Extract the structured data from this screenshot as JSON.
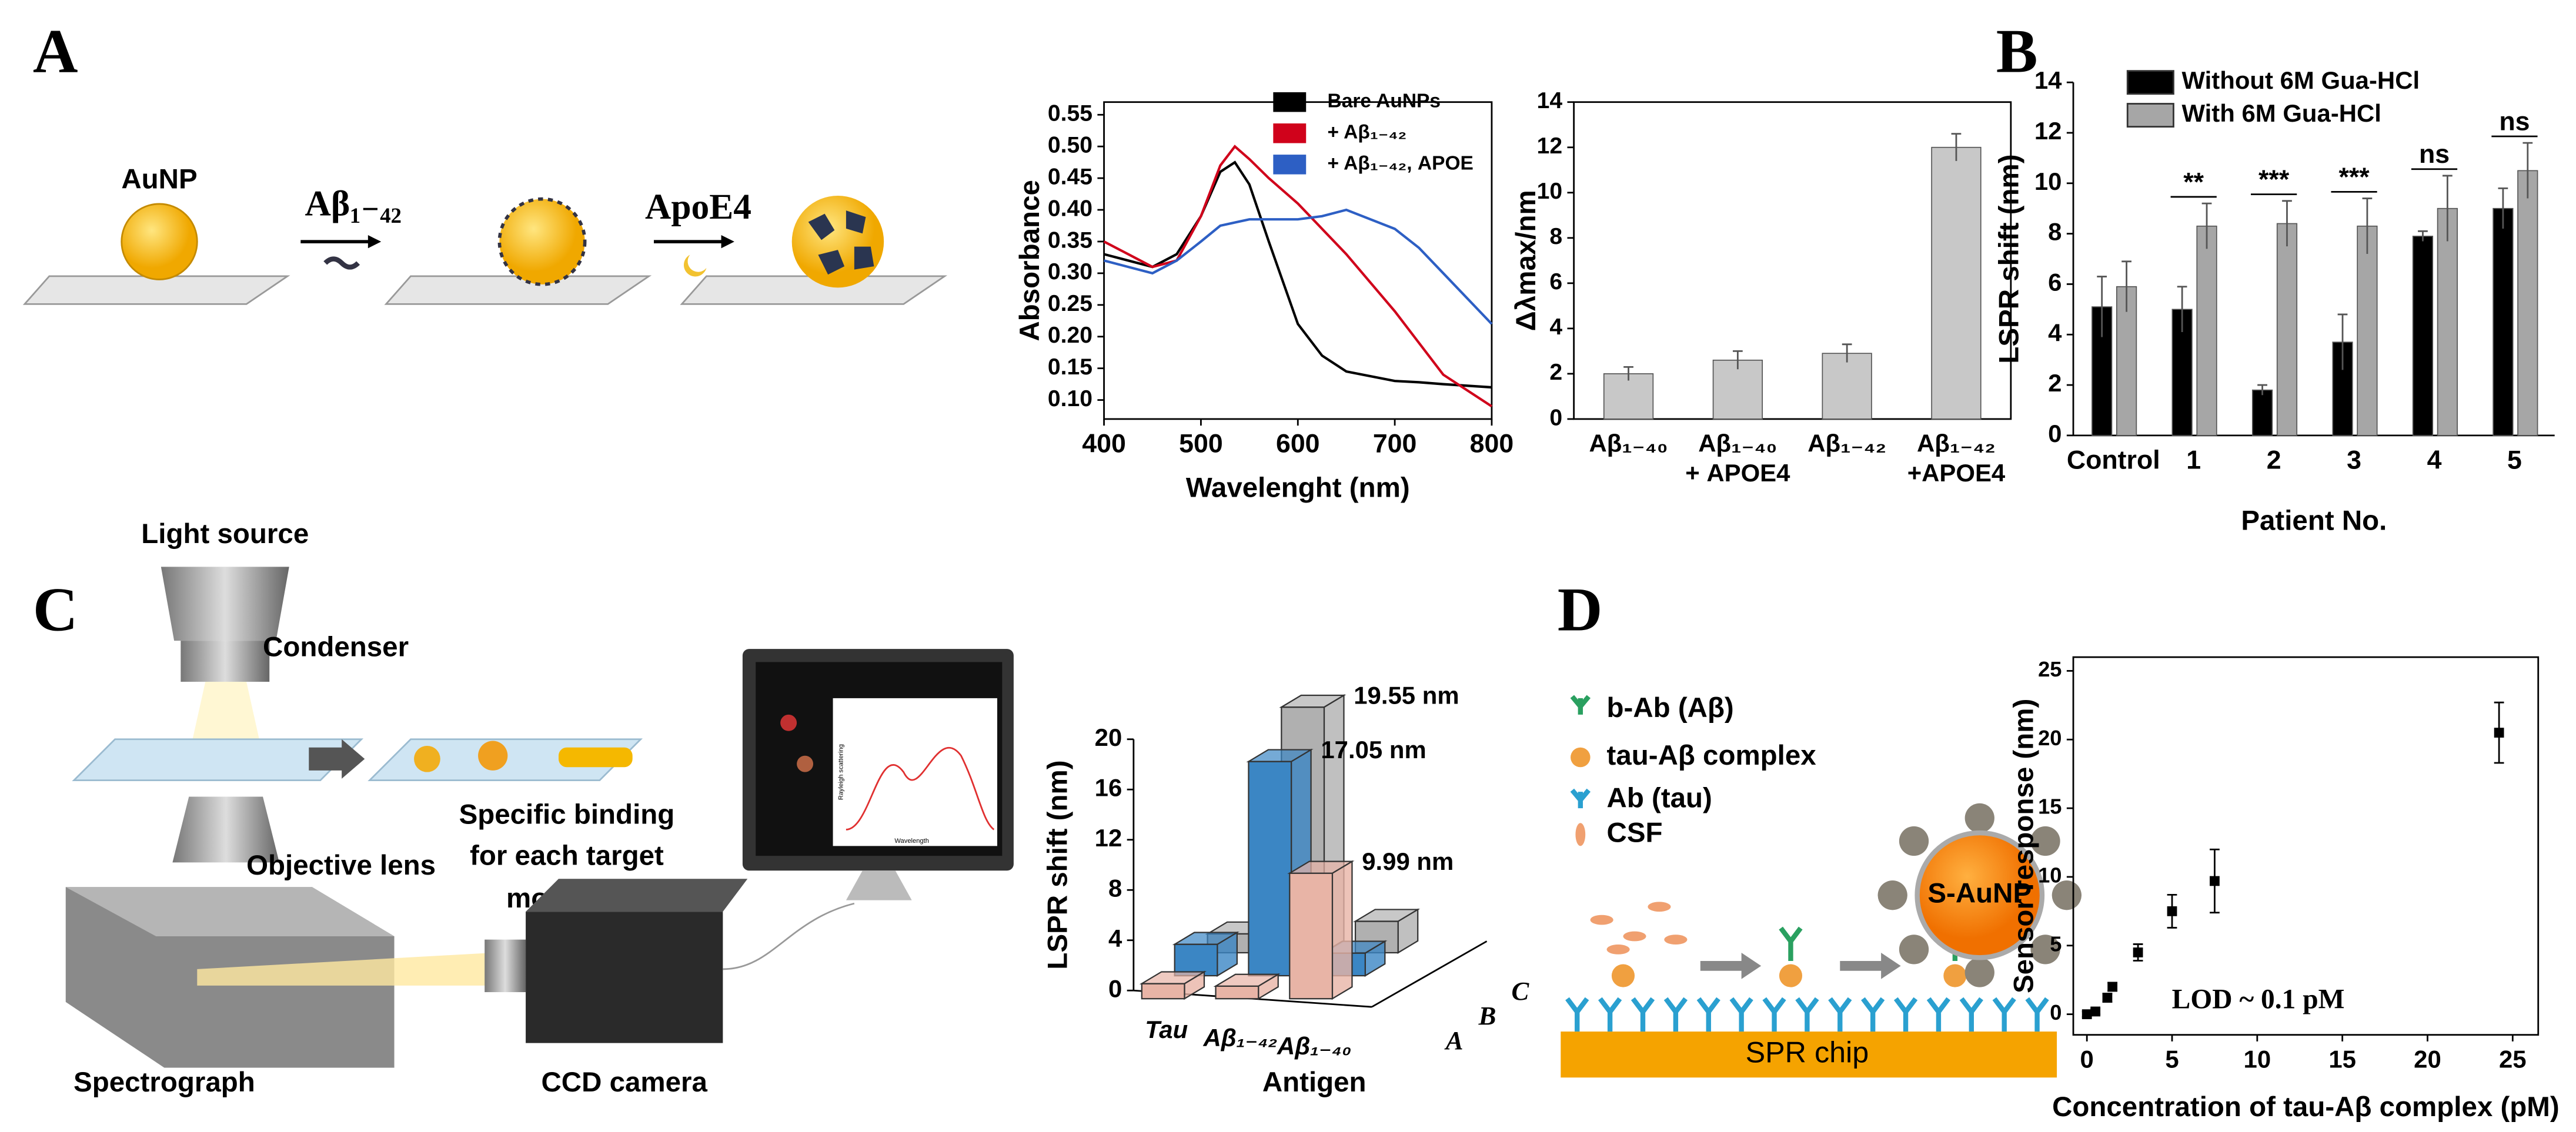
{
  "panels": [
    "A",
    "B",
    "C",
    "D"
  ],
  "diagram_a": {
    "nanoparticle": "AuNP",
    "step1": "Aβ₁₋₄₂",
    "step2": "ApoE4"
  },
  "diagram_c": {
    "light": "Light source",
    "condenser": "Condenser",
    "objective": "Objective lens",
    "binding": [
      "Specific binding",
      "for each target",
      "molecule"
    ],
    "spectrograph": "Spectrograph",
    "camera": "CCD camera",
    "screen_y": "Rayleigh scattering",
    "screen_x": "Wavelength"
  },
  "diagram_d": {
    "legend": [
      "b-Ab (Aβ)",
      "tau-Aβ complex",
      "Ab (tau)",
      "CSF"
    ],
    "particle": "S-AuNP",
    "chip": "SPR chip"
  },
  "chart_data": [
    {
      "type": "line",
      "xlabel": "Wavelenght (nm)",
      "ylabel": "Absorbance",
      "x": [
        400,
        425,
        450,
        475,
        500,
        520,
        535,
        550,
        570,
        600,
        625,
        650,
        700,
        725,
        750,
        800
      ],
      "series": [
        {
          "name": "Bare AuNPs",
          "color": "#000000",
          "values": [
            0.33,
            0.32,
            0.31,
            0.33,
            0.39,
            0.46,
            0.475,
            0.44,
            0.35,
            0.22,
            0.17,
            0.145,
            0.13,
            0.128,
            0.125,
            0.12
          ]
        },
        {
          "name": "+ Aβ₁₋₄₂",
          "color": "#d0021b",
          "values": [
            0.35,
            0.33,
            0.31,
            0.32,
            0.39,
            0.47,
            0.5,
            0.48,
            0.45,
            0.41,
            0.37,
            0.33,
            0.24,
            0.19,
            0.14,
            0.09
          ]
        },
        {
          "name": "+ Aβ₁₋₄₂, APOE",
          "color": "#2d5fc4",
          "values": [
            0.32,
            0.31,
            0.3,
            0.32,
            0.35,
            0.375,
            0.38,
            0.385,
            0.385,
            0.385,
            0.39,
            0.4,
            0.37,
            0.34,
            0.3,
            0.22
          ]
        }
      ],
      "xlim": [
        400,
        800
      ],
      "xticks": [
        400,
        500,
        600,
        700,
        800
      ],
      "ylim": [
        0.07,
        0.57
      ],
      "yticks": [
        {
          "value": 0.1,
          "label": "0.10"
        },
        0.15,
        {
          "value": 0.2,
          "label": "0.20"
        },
        0.25,
        {
          "value": 0.3,
          "label": "0.30"
        },
        0.35,
        {
          "value": 0.4,
          "label": "0.40"
        },
        0.45,
        {
          "value": 0.5,
          "label": "0.50"
        },
        0.55
      ]
    },
    {
      "type": "bar",
      "ylabel": "Δλmax/nm",
      "categories": [
        "Aβ₁₋₄₀",
        "Aβ₁₋₄₀\n+ APOE4",
        "Aβ₁₋₄₂",
        "Aβ₁₋₄₂\n+APOE4"
      ],
      "values": [
        2.0,
        2.6,
        2.9,
        12.0
      ],
      "errors": [
        0.3,
        0.4,
        0.4,
        0.6
      ],
      "color": "#c8c8c8",
      "ylim": [
        0,
        14
      ],
      "yticks": [
        0,
        2,
        4,
        6,
        8,
        10,
        12,
        14
      ]
    },
    {
      "type": "bar",
      "ylabel": "LSPR shift (nm)",
      "xlabel": "Patient No.",
      "categories": [
        "Control",
        "1",
        "2",
        "3",
        "4",
        "5"
      ],
      "series": [
        {
          "name": "Without 6M Gua-HCl",
          "color": "#000000",
          "values": [
            5.1,
            5.0,
            1.8,
            3.7,
            7.9,
            9.0
          ],
          "errors": [
            1.2,
            0.9,
            0.2,
            1.1,
            0.2,
            0.8
          ]
        },
        {
          "name": "With 6M Gua-HCl",
          "color": "#a6a6a6",
          "values": [
            5.9,
            8.3,
            8.4,
            8.3,
            9.0,
            10.5
          ],
          "errors": [
            1.0,
            0.9,
            0.9,
            1.1,
            1.3,
            1.1
          ]
        }
      ],
      "annotations": [
        null,
        "**",
        "***",
        "***",
        "ns",
        "ns"
      ],
      "ylim": [
        0,
        14
      ],
      "yticks": [
        0,
        2,
        4,
        6,
        8,
        10,
        12,
        14
      ]
    },
    {
      "type": "bar3d",
      "ylabel": "LSPR shift (nm)",
      "xlabel": "Antigen",
      "categories": [
        "Tau",
        "Aβ₁₋₄₂",
        "Aβ₁₋₄₀"
      ],
      "series": [
        {
          "name": "A",
          "color": "#e8b4a6",
          "values": [
            1.2,
            1.0,
            9.99
          ],
          "value_labels": [
            null,
            null,
            "9.99 nm"
          ]
        },
        {
          "name": "B",
          "color": "#3b86c4",
          "values": [
            2.5,
            17.05,
            1.8
          ],
          "value_labels": [
            null,
            "17.05 nm",
            null
          ]
        },
        {
          "name": "C",
          "color": "#b0b0b0",
          "values": [
            1.5,
            19.55,
            2.5
          ],
          "value_labels": [
            null,
            "19.55 nm",
            null
          ]
        }
      ],
      "ylim": [
        0,
        20
      ],
      "yticks": [
        0,
        4,
        8,
        12,
        16,
        20
      ]
    },
    {
      "type": "scatter",
      "xlabel": "Concentration of  tau-Aβ complex (pM)",
      "ylabel": "Sensor response (nm)",
      "annotation": "LOD ~ 0.1 pM",
      "x": [
        0,
        0.5,
        1.2,
        1.5,
        3,
        5,
        7.5,
        24.2
      ],
      "y": [
        0,
        0.2,
        1.2,
        2,
        4.5,
        7.5,
        9.7,
        20.5
      ],
      "errors": [
        0.2,
        0.2,
        0.3,
        0.3,
        0.6,
        1.2,
        2.3,
        2.2
      ],
      "color": "#000000",
      "xlim": [
        -0.8,
        26.5
      ],
      "xticks": [
        0,
        5,
        10,
        15,
        20,
        25
      ],
      "ylim": [
        -1.5,
        26
      ],
      "yticks": [
        0,
        5,
        10,
        15,
        20,
        25
      ]
    }
  ]
}
